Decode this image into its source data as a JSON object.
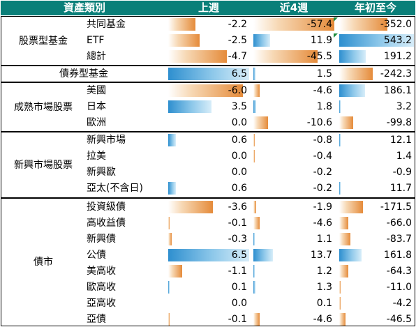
{
  "header": {
    "asset_class": "資產類別",
    "week1": "上週",
    "week4": "近4週",
    "ytd": "年初至今"
  },
  "colors": {
    "header_bg": "#0a7f79",
    "negative": "#e58b3a",
    "positive": "#2e8fcf",
    "flag": "#1a8a3c"
  },
  "chart_data": {
    "type": "table",
    "columns": [
      "上週",
      "近4週",
      "年初至今"
    ],
    "groups": [
      {
        "name": "股票型基金",
        "rows": [
          {
            "label": "共同基金",
            "values": [
              -2.2,
              -57.4,
              -352.0
            ]
          },
          {
            "label": "ETF",
            "values": [
              -2.5,
              11.9,
              543.2
            ]
          },
          {
            "label": "總計",
            "values": [
              -4.7,
              -45.5,
              191.2
            ]
          }
        ]
      },
      {
        "name": "債券型基金",
        "rows": [
          {
            "label": "",
            "values": [
              6.5,
              1.5,
              -242.3
            ]
          }
        ]
      },
      {
        "name": "成熟市場股票",
        "rows": [
          {
            "label": "美國",
            "values": [
              -6.0,
              -4.6,
              186.1
            ]
          },
          {
            "label": "日本",
            "values": [
              3.5,
              1.8,
              3.2
            ]
          },
          {
            "label": "歐洲",
            "values": [
              0.0,
              -10.6,
              -99.8
            ]
          }
        ]
      },
      {
        "name": "新興市場股票",
        "rows": [
          {
            "label": "新興市場",
            "values": [
              0.6,
              -0.8,
              12.1
            ]
          },
          {
            "label": "拉美",
            "values": [
              0.0,
              -0.4,
              1.4
            ]
          },
          {
            "label": "新興歐",
            "values": [
              0.0,
              -0.2,
              -0.9
            ]
          },
          {
            "label": "亞太(不含日)",
            "values": [
              0.6,
              -0.2,
              11.7
            ]
          }
        ]
      },
      {
        "name": "債市",
        "rows": [
          {
            "label": "投資級債",
            "values": [
              -3.6,
              -1.9,
              -171.5
            ]
          },
          {
            "label": "高收益債",
            "values": [
              -0.1,
              -4.6,
              -66.0
            ]
          },
          {
            "label": "新興債",
            "values": [
              -0.3,
              1.1,
              -83.7
            ]
          },
          {
            "label": "公債",
            "values": [
              6.5,
              13.7,
              161.8
            ]
          },
          {
            "label": "美高收",
            "values": [
              -1.1,
              1.2,
              -64.3
            ]
          },
          {
            "label": "歐高收",
            "values": [
              0.1,
              1.3,
              -11.0
            ]
          },
          {
            "label": "亞高收",
            "values": [
              0.0,
              0.1,
              -4.2
            ]
          },
          {
            "label": "亞債",
            "values": [
              -0.1,
              -4.6,
              -46.5
            ]
          }
        ]
      }
    ]
  }
}
